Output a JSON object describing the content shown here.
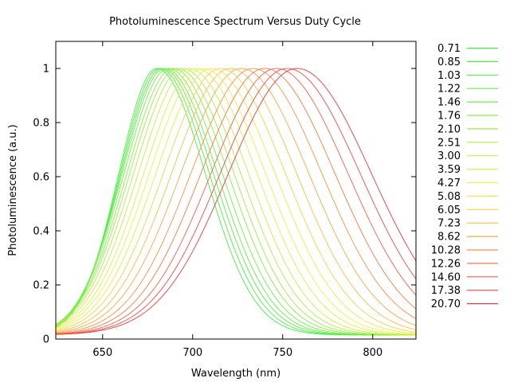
{
  "chart_data": {
    "type": "line",
    "title": "Photoluminescence Spectrum Versus Duty Cycle",
    "xlabel": "Wavelength (nm)",
    "ylabel": "Photoluminescence (a.u.)",
    "xlim": [
      624,
      824
    ],
    "ylim": [
      0,
      1.1
    ],
    "xticks": [
      650,
      700,
      750,
      800
    ],
    "yticks": [
      0,
      0.2,
      0.4,
      0.6,
      0.8,
      1
    ],
    "ytick_labels": [
      "0",
      "0.2",
      "0.4",
      "0.6",
      "0.8",
      "1"
    ],
    "legend_position": "outside-right",
    "grid": false,
    "series": [
      {
        "name": "0.71",
        "peak_nm": 680.0,
        "color": "#46ee46"
      },
      {
        "name": "0.85",
        "peak_nm": 681.5,
        "color": "#4cee46"
      },
      {
        "name": "1.03",
        "peak_nm": 683.0,
        "color": "#58ee46"
      },
      {
        "name": "1.22",
        "peak_nm": 684.5,
        "color": "#64ee46"
      },
      {
        "name": "1.46",
        "peak_nm": 686.5,
        "color": "#74ee46"
      },
      {
        "name": "1.76",
        "peak_nm": 689.0,
        "color": "#86ee46"
      },
      {
        "name": "2.10",
        "peak_nm": 691.5,
        "color": "#9aee46"
      },
      {
        "name": "2.51",
        "peak_nm": 694.5,
        "color": "#b0ee46"
      },
      {
        "name": "3.00",
        "peak_nm": 698.0,
        "color": "#c8ee46"
      },
      {
        "name": "3.59",
        "peak_nm": 702.0,
        "color": "#e0ee46"
      },
      {
        "name": "4.27",
        "peak_nm": 706.0,
        "color": "#f0f046"
      },
      {
        "name": "5.08",
        "peak_nm": 710.5,
        "color": "#f4e646"
      },
      {
        "name": "6.05",
        "peak_nm": 715.5,
        "color": "#f8d246"
      },
      {
        "name": "7.23",
        "peak_nm": 721.0,
        "color": "#fcbe46"
      },
      {
        "name": "8.62",
        "peak_nm": 727.0,
        "color": "#fca846"
      },
      {
        "name": "10.28",
        "peak_nm": 733.5,
        "color": "#fc9246"
      },
      {
        "name": "12.26",
        "peak_nm": 740.0,
        "color": "#fc7a46"
      },
      {
        "name": "14.60",
        "peak_nm": 746.5,
        "color": "#f86046"
      },
      {
        "name": "17.38",
        "peak_nm": 752.5,
        "color": "#f44a46"
      },
      {
        "name": "20.70",
        "peak_nm": 758.0,
        "color": "#ee3a3a"
      }
    ]
  }
}
